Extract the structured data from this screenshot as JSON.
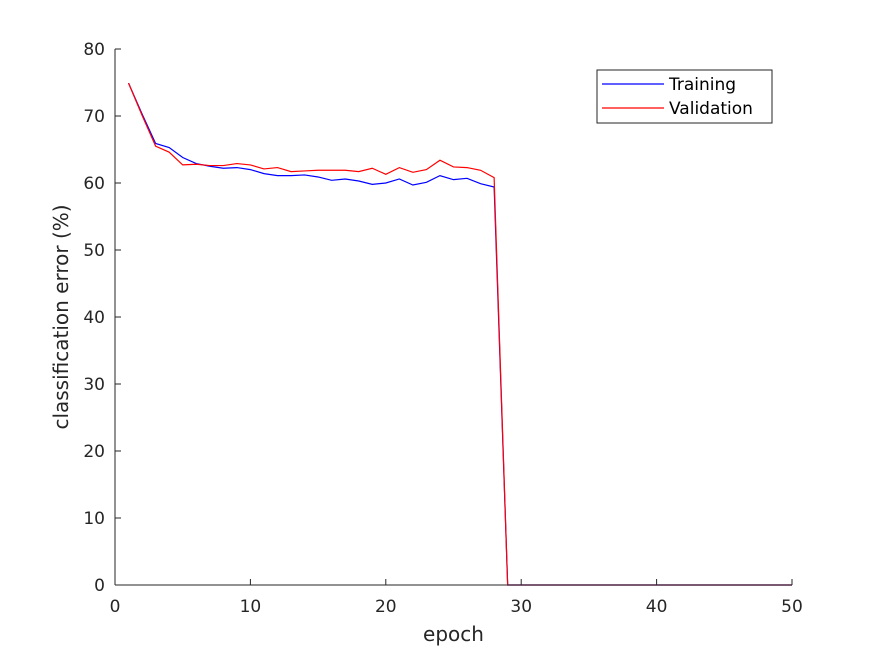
{
  "chart_data": {
    "type": "line",
    "xlabel": "epoch",
    "ylabel": "classification error (%)",
    "xlim": [
      0,
      50
    ],
    "ylim": [
      0,
      80
    ],
    "xticks": [
      0,
      10,
      20,
      30,
      40,
      50
    ],
    "yticks": [
      0,
      10,
      20,
      30,
      40,
      50,
      60,
      70,
      80
    ],
    "grid": false,
    "legend_position": "top-right",
    "series": [
      {
        "name": "Training",
        "color": "#0000ff",
        "x": [
          1,
          2,
          3,
          4,
          5,
          6,
          7,
          8,
          9,
          10,
          11,
          12,
          13,
          14,
          15,
          16,
          17,
          18,
          19,
          20,
          21,
          22,
          23,
          24,
          25,
          26,
          27,
          28,
          29,
          30,
          31,
          32,
          33,
          34,
          35,
          36,
          37,
          38,
          39,
          40,
          41,
          42,
          43,
          44,
          45,
          46,
          47,
          48,
          49,
          50
        ],
        "y": [
          74.9,
          70.3,
          65.9,
          65.3,
          63.8,
          62.9,
          62.5,
          62.2,
          62.3,
          62.0,
          61.4,
          61.1,
          61.1,
          61.2,
          60.9,
          60.4,
          60.6,
          60.3,
          59.8,
          60.0,
          60.6,
          59.7,
          60.1,
          61.1,
          60.5,
          60.7,
          59.9,
          59.4,
          0,
          0,
          0,
          0,
          0,
          0,
          0,
          0,
          0,
          0,
          0,
          0,
          0,
          0,
          0,
          0,
          0,
          0,
          0,
          0,
          0,
          0
        ]
      },
      {
        "name": "Validation",
        "color": "#ff0000",
        "x": [
          1,
          2,
          3,
          4,
          5,
          6,
          7,
          8,
          9,
          10,
          11,
          12,
          13,
          14,
          15,
          16,
          17,
          18,
          19,
          20,
          21,
          22,
          23,
          24,
          25,
          26,
          27,
          28,
          29,
          30,
          31,
          32,
          33,
          34,
          35,
          36,
          37,
          38,
          39,
          40,
          41,
          42,
          43,
          44,
          45,
          46,
          47,
          48,
          49,
          50
        ],
        "y": [
          74.9,
          70.1,
          65.5,
          64.6,
          62.7,
          62.8,
          62.6,
          62.6,
          62.9,
          62.7,
          62.1,
          62.3,
          61.7,
          61.8,
          61.9,
          61.9,
          61.9,
          61.7,
          62.2,
          61.3,
          62.3,
          61.6,
          62.0,
          63.4,
          62.4,
          62.3,
          61.9,
          60.8,
          0,
          0,
          0,
          0,
          0,
          0,
          0,
          0,
          0,
          0,
          0,
          0,
          0,
          0,
          0,
          0,
          0,
          0,
          0,
          0,
          0,
          0
        ]
      }
    ]
  }
}
